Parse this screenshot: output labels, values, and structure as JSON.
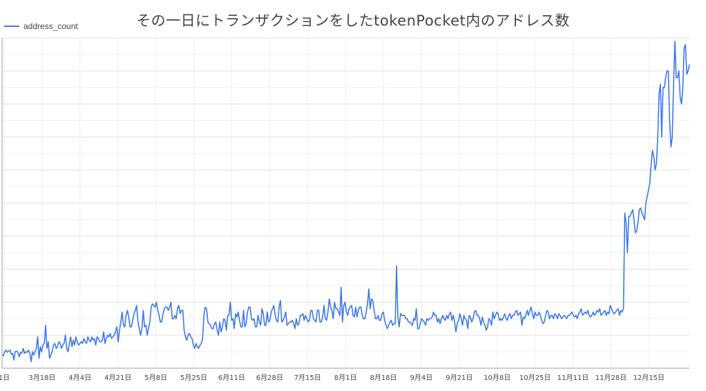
{
  "chart_data": {
    "type": "line",
    "title": "その一日にトランザクションをしたtokenPocket内のアドレス数",
    "legend": {
      "position": "top-left"
    },
    "grid": true,
    "x_tick_labels": [
      "1日",
      "3月18日",
      "4月4日",
      "4月21日",
      "5月8日",
      "5月25日",
      "6月11日",
      "6月28日",
      "7月15日",
      "8月1日",
      "8月18日",
      "9月4日",
      "9月21日",
      "10月8日",
      "10月25日",
      "11月11日",
      "11月28日",
      "12月15日"
    ],
    "ylim": [
      0,
      1000
    ],
    "series": [
      {
        "name": "address_count",
        "color": "#3b78e7",
        "values": [
          40,
          38,
          50,
          55,
          48,
          52,
          55,
          42,
          45,
          25,
          50,
          52,
          48,
          35,
          48,
          45,
          60,
          45,
          50,
          48,
          55,
          45,
          20,
          50,
          40,
          50,
          60,
          95,
          30,
          65,
          50,
          70,
          75,
          130,
          60,
          80,
          30,
          40,
          50,
          70,
          75,
          60,
          65,
          80,
          75,
          60,
          70,
          75,
          100,
          60,
          50,
          75,
          95,
          65,
          85,
          70,
          95,
          80,
          70,
          75,
          80,
          75,
          90,
          80,
          75,
          95,
          85,
          80,
          95,
          85,
          90,
          70,
          95,
          90,
          80,
          80,
          85,
          110,
          75,
          90,
          100,
          95,
          105,
          90,
          95,
          100,
          110,
          125,
          80,
          115,
          140,
          170,
          130,
          125,
          160,
          175,
          155,
          125,
          125,
          145,
          165,
          175,
          190,
          140,
          120,
          100,
          120,
          175,
          125,
          130,
          100,
          120,
          140,
          185,
          195,
          190,
          185,
          200,
          175,
          160,
          140,
          140,
          165,
          180,
          185,
          185,
          175,
          185,
          200,
          150,
          150,
          160,
          150,
          180,
          190,
          165,
          175,
          175,
          115,
          95,
          85,
          100,
          105,
          95,
          90,
          70,
          60,
          75,
          65,
          60,
          70,
          75,
          90,
          160,
          185,
          180,
          140,
          135,
          130,
          120,
          120,
          135,
          140,
          115,
          100,
          140,
          110,
          125,
          150,
          145,
          115,
          160,
          160,
          200,
          145,
          150,
          120,
          165,
          155,
          170,
          145,
          125,
          125,
          175,
          125,
          135,
          170,
          185,
          185,
          150,
          145,
          150,
          125,
          125,
          160,
          140,
          130,
          180,
          165,
          130,
          130,
          170,
          140,
          145,
          170,
          180,
          190,
          160,
          145,
          140,
          185,
          205,
          140,
          145,
          155,
          170,
          130,
          135,
          140,
          140,
          145,
          135,
          120,
          150,
          130,
          135,
          160,
          160,
          165,
          145,
          160,
          150,
          140,
          145,
          175,
          175,
          150,
          145,
          140,
          175,
          175,
          140,
          140,
          155,
          190,
          150,
          145,
          170,
          210,
          185,
          175,
          150,
          200,
          180,
          180,
          170,
          160,
          245,
          140,
          190,
          200,
          170,
          160,
          180,
          185,
          190,
          160,
          155,
          185,
          155,
          175,
          185,
          185,
          160,
          150,
          150,
          170,
          195,
          240,
          180,
          210,
          205,
          175,
          150,
          150,
          160,
          145,
          145,
          165,
          170,
          145,
          130,
          120,
          130,
          140,
          145,
          130,
          135,
          135,
          310,
          155,
          125,
          165,
          160,
          160,
          160,
          150,
          150,
          140,
          140,
          135,
          130,
          150,
          145,
          180,
          120,
          120,
          135,
          150,
          145,
          140,
          130,
          150,
          145,
          150,
          150,
          155,
          170,
          160,
          160,
          140,
          150,
          135,
          150,
          160,
          150,
          145,
          160,
          150,
          165,
          170,
          145,
          160,
          140,
          110,
          135,
          145,
          165,
          150,
          130,
          160,
          150,
          145,
          120,
          160,
          155,
          140,
          150,
          170,
          175,
          160,
          160,
          150,
          130,
          155,
          140,
          130,
          115,
          125,
          150,
          145,
          130,
          170,
          150,
          160,
          170,
          165,
          145,
          150,
          145,
          155,
          165,
          150,
          145,
          160,
          165,
          150,
          160,
          160,
          170,
          175,
          160,
          165,
          170,
          130,
          155,
          150,
          160,
          175,
          160,
          175,
          185,
          165,
          150,
          170,
          160,
          160,
          170,
          160,
          145,
          135,
          140,
          160,
          175,
          170,
          150,
          160,
          160,
          150,
          165,
          160,
          150,
          165,
          160,
          150,
          155,
          160,
          155,
          150,
          160,
          160,
          165,
          170,
          160,
          155,
          160,
          150,
          165,
          170,
          180,
          160,
          165,
          170,
          165,
          175,
          160,
          155,
          160,
          170,
          160,
          165,
          175,
          170,
          180,
          160,
          165,
          170,
          175,
          160,
          170,
          165,
          190,
          180,
          170,
          165,
          170,
          175,
          180,
          160,
          175,
          170,
          180,
          470,
          440,
          350,
          460,
          460,
          470,
          480,
          450,
          410,
          415,
          440,
          480,
          485,
          470,
          460,
          450,
          500,
          520,
          540,
          560,
          620,
          660,
          640,
          600,
          620,
          700,
          830,
          860,
          700,
          850,
          850,
          880,
          900,
          900,
          750,
          670,
          700,
          860,
          990,
          880,
          880,
          900,
          820,
          800,
          850,
          970,
          980,
          890,
          900,
          920
        ]
      }
    ]
  }
}
